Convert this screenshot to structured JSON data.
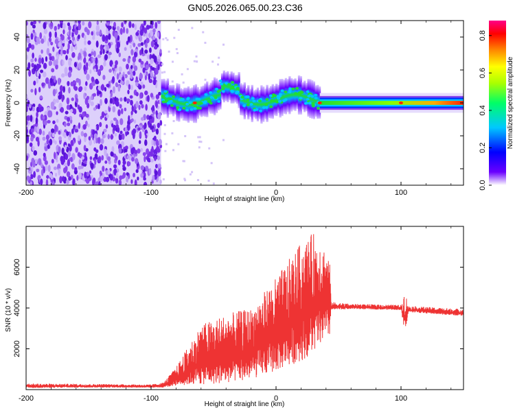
{
  "title": "GN05.2026.065.00.23.C36",
  "colors": {
    "snr_line": "#ee3333",
    "spectrum_ridge": "#22cc66",
    "scatter_purple": "#7a2ee8",
    "axis": "#000000"
  },
  "chart_data": [
    {
      "type": "heatmap",
      "name": "spectrogram",
      "xlabel": "Height of straight line (km)",
      "ylabel": "Frequency (Hz)",
      "xlim": [
        -200,
        150
      ],
      "ylim": [
        -50,
        50
      ],
      "xticks": [
        -200,
        -100,
        0,
        100
      ],
      "yticks": [
        -40,
        -20,
        0,
        20,
        40
      ],
      "colorbar": {
        "label": "Normalized spectral amplitude",
        "ticks": [
          0.0,
          0.2,
          0.4,
          0.6,
          0.8
        ],
        "range": [
          0.0,
          0.88
        ],
        "tick_labels": [
          "0.0",
          "0.2",
          "0.4",
          "0.6",
          "0.8"
        ]
      },
      "regions": [
        {
          "name": "noise",
          "x_range": [
            -200,
            -92
          ],
          "freq_range": [
            -50,
            50
          ],
          "amplitude": 0.05
        },
        {
          "name": "transition",
          "x_range": [
            -92,
            35
          ],
          "freq_center_approx": 2,
          "freq_halfwidth": 8,
          "amplitude": 0.45
        },
        {
          "name": "stable",
          "x_range": [
            35,
            150
          ],
          "freq_center": 0,
          "freq_halfwidth": 4,
          "amplitude": 0.9
        }
      ]
    },
    {
      "type": "line",
      "name": "snr",
      "xlabel": "Height of straight line (km)",
      "ylabel": "SNR (10 * v/v)",
      "xlim": [
        -200,
        150
      ],
      "ylim": [
        0,
        8000
      ],
      "xticks": [
        -200,
        -100,
        0,
        100
      ],
      "yticks": [
        2000,
        4000,
        6000
      ],
      "series": [
        {
          "name": "SNR",
          "envelope_x": [
            -200,
            -150,
            -100,
            -90,
            -80,
            -60,
            -40,
            -20,
            0,
            20,
            30,
            35,
            43,
            44,
            60,
            100,
            103,
            106,
            150
          ],
          "envelope_min": [
            80,
            100,
            100,
            100,
            200,
            250,
            300,
            500,
            900,
            1400,
            1800,
            2200,
            2600,
            3900,
            3950,
            3900,
            2700,
            3800,
            3600
          ],
          "envelope_max": [
            300,
            280,
            250,
            350,
            1100,
            3200,
            3700,
            4000,
            5500,
            7200,
            7700,
            7500,
            6500,
            4300,
            4200,
            4150,
            4900,
            4100,
            3950
          ]
        }
      ]
    }
  ]
}
